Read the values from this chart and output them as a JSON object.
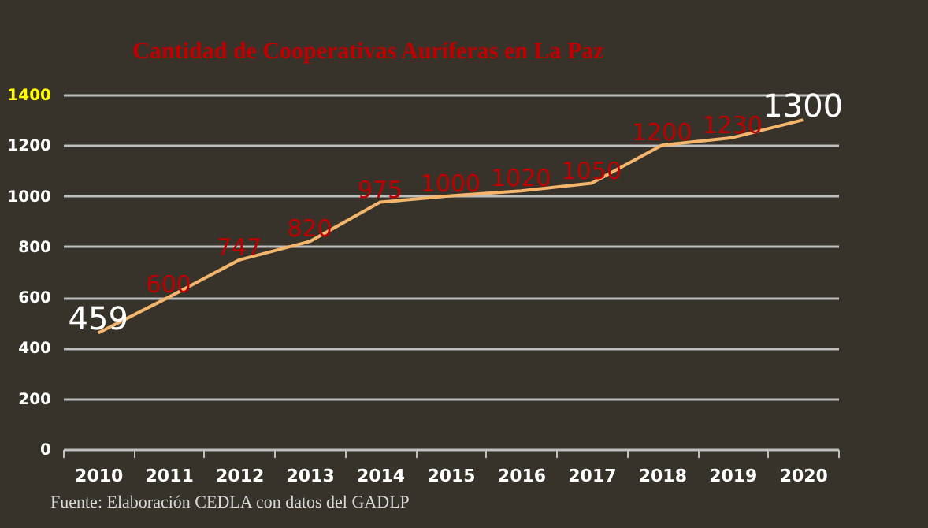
{
  "chart_data": {
    "type": "line",
    "title": "Cantidad de Cooperativas Auríferas en La Paz",
    "categories": [
      "2010",
      "2011",
      "2012",
      "2013",
      "2014",
      "2015",
      "2016",
      "2017",
      "2018",
      "2019",
      "2020"
    ],
    "series": [
      {
        "color": "#f4b66c",
        "values": [
          459,
          600,
          747,
          820,
          975,
          1000,
          1020,
          1050,
          1200,
          1230,
          1300
        ]
      }
    ],
    "ylim": [
      0,
      1400
    ],
    "yticks": [
      0,
      200,
      400,
      600,
      800,
      1000,
      1200,
      1400
    ],
    "grid": "y",
    "data_labels": true,
    "marker": "none",
    "annotations": [
      "Fuente: Elaboración CEDLA con datos del GADLP"
    ]
  }
}
